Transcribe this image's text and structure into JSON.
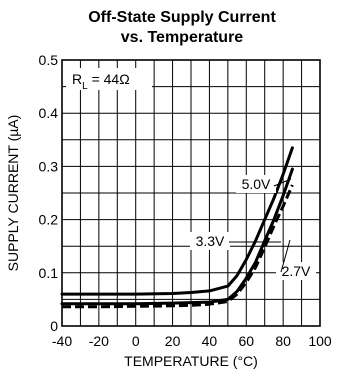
{
  "chart_data": {
    "type": "line",
    "title": [
      "Off-State Supply Current",
      "vs. Temperature"
    ],
    "xlabel": "TEMPERATURE (°C)",
    "ylabel": "SUPPLY CURRENT (µA)",
    "xlim": [
      -40,
      100
    ],
    "ylim": [
      0,
      0.5
    ],
    "xticks": [
      -40,
      -20,
      0,
      20,
      40,
      60,
      80,
      100
    ],
    "yticks": [
      0,
      0.1,
      0.2,
      0.3,
      0.4,
      0.5
    ],
    "ytick_labels": [
      "0",
      "0.1",
      "0.2",
      "0.3",
      "0.4",
      "0.5"
    ],
    "grid": true,
    "condition": {
      "prefix": "R",
      "sub": "L",
      "suffix": " = 44Ω"
    },
    "series": [
      {
        "name": "5.0V",
        "style": "solid",
        "x": [
          -40,
          -20,
          0,
          20,
          30,
          40,
          50,
          55,
          60,
          65,
          70,
          75,
          80,
          85
        ],
        "y": [
          0.06,
          0.06,
          0.06,
          0.061,
          0.063,
          0.066,
          0.075,
          0.095,
          0.125,
          0.16,
          0.2,
          0.24,
          0.285,
          0.335
        ]
      },
      {
        "name": "3.3V",
        "style": "solid",
        "x": [
          -40,
          -20,
          0,
          20,
          30,
          40,
          50,
          55,
          60,
          65,
          70,
          75,
          80,
          85
        ],
        "y": [
          0.042,
          0.042,
          0.042,
          0.043,
          0.044,
          0.045,
          0.05,
          0.065,
          0.09,
          0.12,
          0.16,
          0.2,
          0.245,
          0.295
        ]
      },
      {
        "name": "2.7V",
        "style": "dashed",
        "x": [
          -40,
          -20,
          0,
          20,
          30,
          40,
          50,
          55,
          60,
          65,
          70,
          75,
          80,
          85
        ],
        "y": [
          0.036,
          0.036,
          0.037,
          0.038,
          0.039,
          0.041,
          0.046,
          0.06,
          0.082,
          0.11,
          0.148,
          0.188,
          0.225,
          0.265
        ]
      }
    ]
  }
}
